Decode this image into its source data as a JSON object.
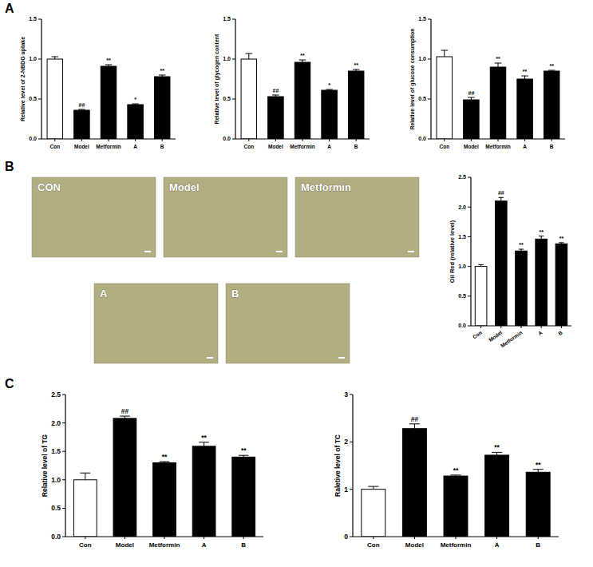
{
  "figure": {
    "panel_labels": [
      "A",
      "B",
      "C"
    ],
    "micrographs": [
      "CON",
      "Model",
      "Metformin",
      "A",
      "B"
    ]
  },
  "chart_data": [
    {
      "type": "bar",
      "y_label": "Relative level of 2-NBDG uptake",
      "categories": [
        "Con",
        "Model",
        "Metformin",
        "A",
        "B"
      ],
      "values": [
        1.0,
        0.36,
        0.91,
        0.43,
        0.78
      ],
      "errors": [
        0.03,
        0.01,
        0.02,
        0.01,
        0.02
      ],
      "annotations": [
        null,
        "##",
        "**",
        "*",
        "**"
      ],
      "colors": [
        "#ffffff",
        "#000000",
        "#000000",
        "#000000",
        "#000000"
      ],
      "ylim": [
        0,
        1.5
      ],
      "yticks": [
        {
          "value": 0,
          "label": "0.0"
        },
        {
          "value": 0.5,
          "label": "0.5"
        },
        {
          "value": 1,
          "label": "1.0"
        },
        {
          "value": 1.5,
          "label": "1.5"
        }
      ],
      "grid": false
    },
    {
      "type": "bar",
      "y_label": "Relative level of glycogen content",
      "categories": [
        "Con",
        "Model",
        "Metformin",
        "A",
        "B"
      ],
      "values": [
        1.0,
        0.53,
        0.96,
        0.61,
        0.85
      ],
      "errors": [
        0.07,
        0.02,
        0.03,
        0.01,
        0.02
      ],
      "annotations": [
        null,
        "##",
        "**",
        "*",
        "**"
      ],
      "colors": [
        "#ffffff",
        "#000000",
        "#000000",
        "#000000",
        "#000000"
      ],
      "ylim": [
        0,
        1.5
      ],
      "yticks": [
        {
          "value": 0,
          "label": "0.0"
        },
        {
          "value": 0.5,
          "label": "0.5"
        },
        {
          "value": 1,
          "label": "1.0"
        },
        {
          "value": 1.5,
          "label": "1.5"
        }
      ],
      "grid": false
    },
    {
      "type": "bar",
      "y_label": "Relative level of glucose consumption",
      "categories": [
        "Con",
        "Model",
        "Metformin",
        "A",
        "B"
      ],
      "values": [
        1.03,
        0.49,
        0.9,
        0.75,
        0.85
      ],
      "errors": [
        0.08,
        0.03,
        0.05,
        0.04,
        0.01
      ],
      "annotations": [
        null,
        "##",
        "**",
        "**",
        "**"
      ],
      "colors": [
        "#ffffff",
        "#000000",
        "#000000",
        "#000000",
        "#000000"
      ],
      "ylim": [
        0,
        1.5
      ],
      "yticks": [
        {
          "value": 0,
          "label": "0.0"
        },
        {
          "value": 0.5,
          "label": "0.5"
        },
        {
          "value": 1,
          "label": "1.0"
        },
        {
          "value": 1.5,
          "label": "1.5"
        }
      ],
      "grid": false
    },
    {
      "type": "bar",
      "y_label": "Oil Red (relative level)",
      "categories": [
        "Con",
        "Model",
        "Metformin",
        "A",
        "B"
      ],
      "values": [
        1.0,
        2.1,
        1.26,
        1.46,
        1.38
      ],
      "errors": [
        0.03,
        0.06,
        0.03,
        0.05,
        0.02
      ],
      "annotations": [
        null,
        "##",
        "**",
        "**",
        "**"
      ],
      "colors": [
        "#ffffff",
        "#000000",
        "#000000",
        "#000000",
        "#000000"
      ],
      "ylim": [
        0,
        2.5
      ],
      "yticks": [
        {
          "value": 0,
          "label": "0.0"
        },
        {
          "value": 0.5,
          "label": "0.5"
        },
        {
          "value": 1,
          "label": "1.0"
        },
        {
          "value": 1.5,
          "label": "1.5"
        },
        {
          "value": 2,
          "label": "2.0"
        },
        {
          "value": 2.5,
          "label": "2.5"
        }
      ],
      "grid": false
    },
    {
      "type": "bar",
      "y_label": "Relative level of TG",
      "categories": [
        "Con",
        "Model",
        "Metformin",
        "A",
        "B"
      ],
      "values": [
        1.0,
        2.08,
        1.3,
        1.59,
        1.4
      ],
      "errors": [
        0.12,
        0.04,
        0.02,
        0.07,
        0.03
      ],
      "annotations": [
        null,
        "##",
        "**",
        "**",
        "**"
      ],
      "colors": [
        "#ffffff",
        "#000000",
        "#000000",
        "#000000",
        "#000000"
      ],
      "ylim": [
        0,
        2.5
      ],
      "yticks": [
        {
          "value": 0,
          "label": "0.0"
        },
        {
          "value": 0.5,
          "label": "0.5"
        },
        {
          "value": 1,
          "label": "1.0"
        },
        {
          "value": 1.5,
          "label": "1.5"
        },
        {
          "value": 2,
          "label": "2.0"
        },
        {
          "value": 2.5,
          "label": "2.5"
        }
      ],
      "grid": false
    },
    {
      "type": "bar",
      "y_label": "Raletive level of TC",
      "categories": [
        "Con",
        "Model",
        "Metformin",
        "A",
        "B"
      ],
      "values": [
        1.0,
        2.28,
        1.28,
        1.72,
        1.36
      ],
      "errors": [
        0.06,
        0.1,
        0.02,
        0.06,
        0.06
      ],
      "annotations": [
        null,
        "##",
        "**",
        "**",
        "**"
      ],
      "colors": [
        "#ffffff",
        "#000000",
        "#000000",
        "#000000",
        "#000000"
      ],
      "ylim": [
        0,
        3
      ],
      "yticks": [
        0,
        1,
        2,
        3
      ],
      "grid": false
    }
  ]
}
